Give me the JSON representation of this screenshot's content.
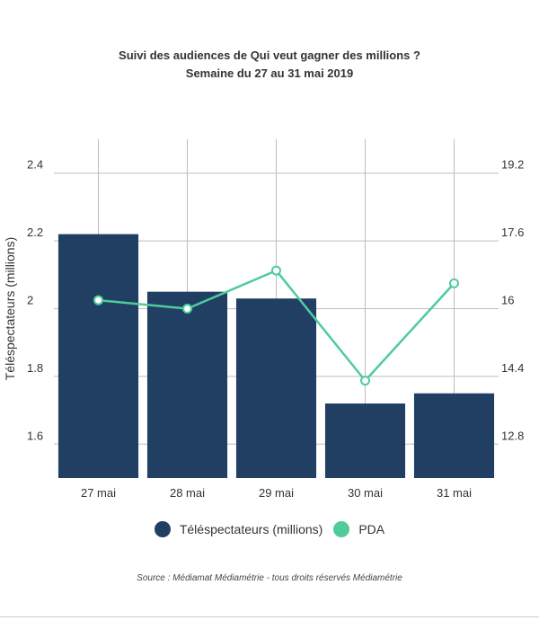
{
  "chart_data": {
    "type": "bar",
    "title": "Suivi des audiences de Qui veut gagner des millions ?",
    "subtitle": "Semaine du 27 au 31 mai 2019",
    "categories": [
      "27 mai",
      "28 mai",
      "29 mai",
      "30 mai",
      "31 mai"
    ],
    "series": [
      {
        "name": "Téléspectateurs (millions)",
        "type": "bar",
        "axis": "left",
        "color": "#213f63",
        "values": [
          2.22,
          2.05,
          2.03,
          1.72,
          1.75
        ]
      },
      {
        "name": "PDA",
        "type": "line",
        "axis": "right",
        "color": "#4fcb9c",
        "values": [
          16.2,
          16.0,
          16.9,
          14.3,
          16.6
        ]
      }
    ],
    "ylabel": "Téléspectateurs (millions)",
    "ylim": [
      1.5,
      2.5
    ],
    "y_ticks": [
      "1.6",
      "1.8",
      "2",
      "2.2",
      "2.4"
    ],
    "y2lim": [
      12.0,
      20.0
    ],
    "y2_ticks": [
      "12.8",
      "14.4",
      "16",
      "17.6",
      "19.2"
    ],
    "grid": true,
    "legend_position": "bottom"
  },
  "source": "Source : Médiamat Médiamétrie - tous droits réservés Médiamétrie"
}
